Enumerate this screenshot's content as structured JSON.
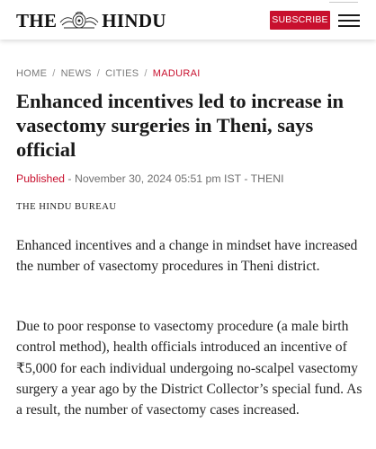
{
  "header": {
    "logo": {
      "left_text": "THE",
      "right_text": "HINDU"
    },
    "subscribe_label": "SUBSCRIBE",
    "menu_icon": "hamburger-menu-icon"
  },
  "breadcrumb": {
    "items": [
      "HOME",
      "NEWS",
      "CITIES",
      "MADURAI"
    ],
    "separator": "/"
  },
  "article": {
    "title": "Enhanced incentives led to increase in vasectomy surgeries in Theni, says official",
    "published_label": "Published",
    "published_rest": " - November 30, 2024 05:51 pm IST - THENI",
    "byline": "THE HINDU BUREAU",
    "paragraphs": [
      "Enhanced incentives and a change in mindset have increased the number of vasectomy procedures in Theni district.",
      "Due to poor response to vasectomy procedure (a male birth control method), health officials introduced an incentive of ₹5,000 for each individual undergoing no-scalpel vasectomy surgery a year ago by the District Collector’s special fund. As a result, the number of vasectomy cases increased."
    ]
  },
  "colors": {
    "brand_red": "#c8102e",
    "text": "#1a1a1a",
    "muted": "#7a7a7a"
  }
}
